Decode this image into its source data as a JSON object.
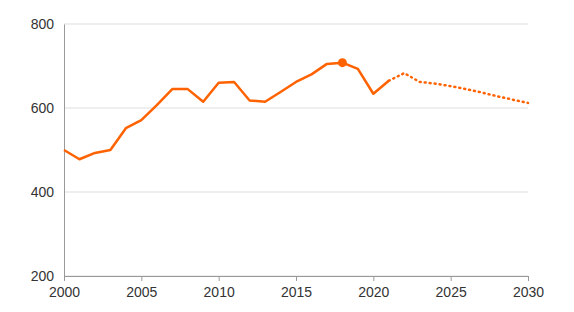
{
  "chart_data": {
    "type": "line",
    "x": [
      2000,
      2001,
      2002,
      2003,
      2004,
      2005,
      2006,
      2007,
      2008,
      2009,
      2010,
      2011,
      2012,
      2013,
      2014,
      2015,
      2016,
      2017,
      2018,
      2019,
      2020,
      2021,
      2022,
      2023,
      2024,
      2025,
      2026,
      2027,
      2028,
      2029,
      2030
    ],
    "series": [
      {
        "color": "#ff6200",
        "line_style": "solid",
        "values": [
          500,
          478,
          493,
          500,
          552,
          571,
          607,
          645,
          645,
          615,
          660,
          662,
          618,
          615,
          638,
          662,
          680,
          705,
          708,
          693,
          634,
          665,
          null,
          null,
          null,
          null,
          null,
          null,
          null,
          null,
          null
        ]
      },
      {
        "color": "#ff6200",
        "line_style": "dotted",
        "values": [
          null,
          null,
          null,
          null,
          null,
          null,
          null,
          null,
          null,
          null,
          null,
          null,
          null,
          null,
          null,
          null,
          null,
          null,
          null,
          null,
          null,
          665,
          683,
          662,
          658,
          652,
          645,
          637,
          628,
          620,
          612
        ]
      },
      {
        "type": "scatter",
        "color": "#ff6200",
        "marker": "circle",
        "values": [
          null,
          null,
          null,
          null,
          null,
          null,
          null,
          null,
          null,
          null,
          null,
          null,
          null,
          null,
          null,
          null,
          null,
          null,
          708,
          null,
          null,
          null,
          null,
          null,
          null,
          null,
          null,
          null,
          null,
          null,
          null
        ]
      }
    ],
    "xlim": [
      2000,
      2030
    ],
    "xticks": [
      2000,
      2005,
      2010,
      2015,
      2020,
      2025,
      2030
    ],
    "ylim": [
      200,
      800
    ],
    "yticks": [
      200,
      400,
      600,
      800
    ],
    "grid": true
  }
}
